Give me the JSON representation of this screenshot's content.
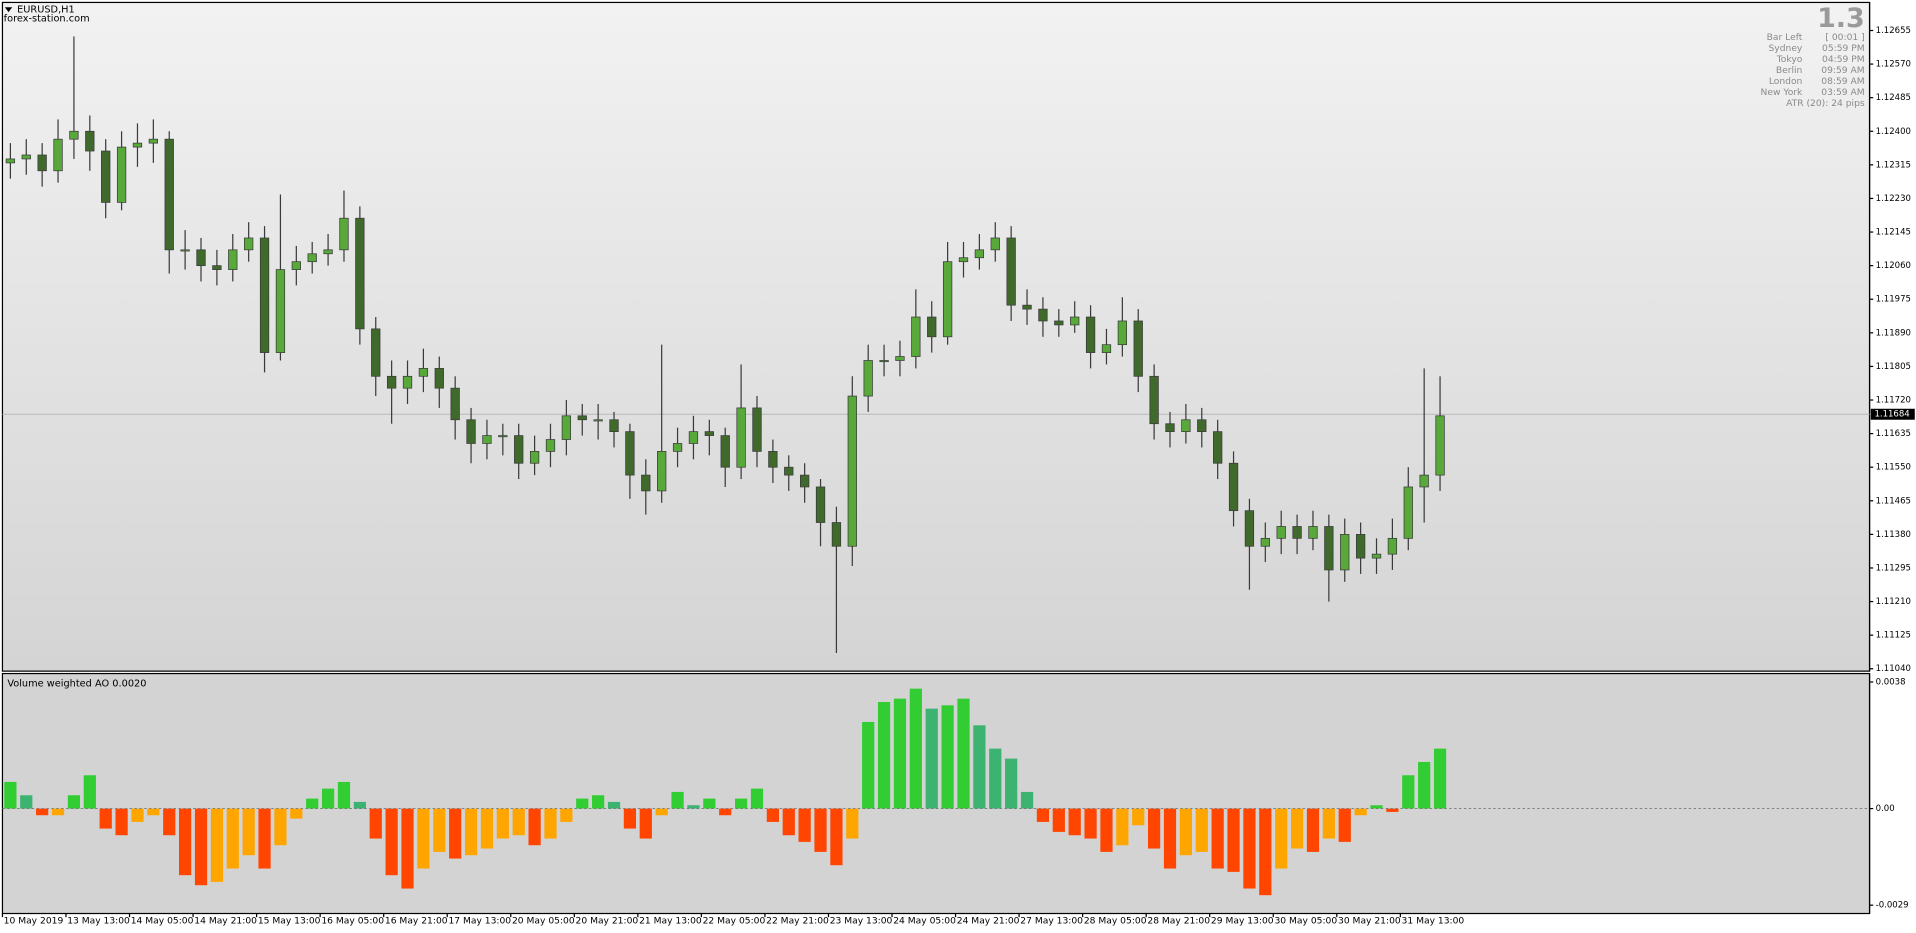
{
  "chart_data": [
    {
      "type": "candlestick",
      "title": "EURUSD,H1",
      "watermark": "forex-station.com",
      "categories": [
        "10 May 2019",
        null,
        null,
        null,
        "13 May 13:00",
        null,
        null,
        null,
        "14 May 05:00",
        null,
        null,
        null,
        "14 May 21:00",
        null,
        null,
        null,
        "15 May 13:00",
        null,
        null,
        null,
        "16 May 05:00",
        null,
        null,
        null,
        "16 May 21:00",
        null,
        null,
        null,
        "17 May 13:00",
        null,
        null,
        null,
        "20 May 05:00",
        null,
        null,
        null,
        "20 May 21:00",
        null,
        null,
        null,
        "21 May 13:00",
        null,
        null,
        null,
        "22 May 05:00",
        null,
        null,
        null,
        "22 May 21:00",
        null,
        null,
        null,
        "23 May 13:00",
        null,
        null,
        null,
        "24 May 05:00",
        null,
        null,
        null,
        "24 May 21:00",
        null,
        null,
        null,
        "27 May 13:00",
        null,
        null,
        null,
        "28 May 05:00",
        null,
        null,
        null,
        "28 May 21:00",
        null,
        null,
        null,
        "29 May 13:00",
        null,
        null,
        null,
        "30 May 05:00",
        null,
        null,
        null,
        "30 May 21:00",
        null,
        null,
        null,
        "31 May 13:00",
        null,
        null
      ],
      "open": [
        1.1232,
        1.1233,
        1.1234,
        1.123,
        1.1238,
        1.124,
        1.1235,
        1.1222,
        1.1236,
        1.1237,
        1.1238,
        1.121,
        1.121,
        1.1206,
        1.1205,
        1.121,
        1.1213,
        1.1184,
        1.1205,
        1.1207,
        1.1209,
        1.121,
        1.1218,
        1.119,
        1.1178,
        1.1175,
        1.1178,
        1.118,
        1.1175,
        1.1167,
        1.1161,
        1.1163,
        1.1163,
        1.1156,
        1.1159,
        1.1162,
        1.1168,
        1.1167,
        1.1167,
        1.1164,
        1.1153,
        1.1149,
        1.1159,
        1.1161,
        1.1164,
        1.1163,
        1.1155,
        1.117,
        1.1159,
        1.1155,
        1.1153,
        1.115,
        1.1141,
        1.1135,
        1.1173,
        1.1182,
        1.1182,
        1.1183,
        1.1193,
        1.1188,
        1.1207,
        1.1208,
        1.121,
        1.1213,
        1.1196,
        1.1195,
        1.1192,
        1.1191,
        1.1193,
        1.1184,
        1.1186,
        1.1192,
        1.1178,
        1.1166,
        1.1164,
        1.1167,
        1.1164,
        1.1156,
        1.1144,
        1.1135,
        1.1137,
        1.114,
        1.1137,
        1.114,
        1.1129,
        1.1138,
        1.1132,
        1.1133,
        1.1137,
        1.115,
        1.1153
      ],
      "high": [
        1.1237,
        1.1238,
        1.1237,
        1.1243,
        1.1264,
        1.1244,
        1.1238,
        1.124,
        1.1242,
        1.1243,
        1.124,
        1.1215,
        1.1213,
        1.121,
        1.1214,
        1.1217,
        1.1216,
        1.1224,
        1.1211,
        1.1212,
        1.1214,
        1.1225,
        1.1221,
        1.1193,
        1.1182,
        1.1182,
        1.1185,
        1.1183,
        1.1178,
        1.117,
        1.1167,
        1.1166,
        1.1166,
        1.1163,
        1.1166,
        1.1172,
        1.1171,
        1.1171,
        1.1169,
        1.1166,
        1.1157,
        1.1186,
        1.1165,
        1.1168,
        1.1167,
        1.1165,
        1.1181,
        1.1173,
        1.1162,
        1.1158,
        1.1156,
        1.1152,
        1.1145,
        1.1178,
        1.1186,
        1.1186,
        1.1187,
        1.12,
        1.1197,
        1.1212,
        1.1212,
        1.1214,
        1.1217,
        1.1216,
        1.12,
        1.1198,
        1.1195,
        1.1197,
        1.1196,
        1.119,
        1.1198,
        1.1195,
        1.1181,
        1.1169,
        1.1171,
        1.117,
        1.1167,
        1.1159,
        1.1147,
        1.1141,
        1.1144,
        1.1143,
        1.1144,
        1.1143,
        1.1142,
        1.1141,
        1.1137,
        1.1142,
        1.1155,
        1.118,
        1.1178
      ],
      "low": [
        1.1228,
        1.1229,
        1.1226,
        1.1227,
        1.1233,
        1.123,
        1.1218,
        1.122,
        1.1231,
        1.1232,
        1.1204,
        1.1205,
        1.1202,
        1.1201,
        1.1202,
        1.1207,
        1.1179,
        1.1182,
        1.1201,
        1.1204,
        1.1206,
        1.1207,
        1.1186,
        1.1173,
        1.1166,
        1.1171,
        1.1174,
        1.117,
        1.1162,
        1.1156,
        1.1157,
        1.1158,
        1.1152,
        1.1153,
        1.1155,
        1.1158,
        1.1163,
        1.1162,
        1.116,
        1.1147,
        1.1143,
        1.1146,
        1.1155,
        1.1157,
        1.1158,
        1.115,
        1.1152,
        1.1155,
        1.1151,
        1.1149,
        1.1146,
        1.1135,
        1.1108,
        1.113,
        1.1169,
        1.1178,
        1.1178,
        1.118,
        1.1184,
        1.1186,
        1.1203,
        1.1205,
        1.1207,
        1.1192,
        1.1191,
        1.1188,
        1.1188,
        1.1189,
        1.118,
        1.1181,
        1.1183,
        1.1174,
        1.1162,
        1.116,
        1.1161,
        1.116,
        1.1152,
        1.114,
        1.1124,
        1.1131,
        1.1133,
        1.1133,
        1.1134,
        1.1121,
        1.1126,
        1.1128,
        1.1128,
        1.1129,
        1.1134,
        1.1141,
        1.1149
      ],
      "close": [
        1.1233,
        1.1234,
        1.123,
        1.1238,
        1.124,
        1.1235,
        1.1222,
        1.1236,
        1.1237,
        1.1238,
        1.121,
        1.121,
        1.1206,
        1.1205,
        1.121,
        1.1213,
        1.1184,
        1.1205,
        1.1207,
        1.1209,
        1.121,
        1.1218,
        1.119,
        1.1178,
        1.1175,
        1.1178,
        1.118,
        1.1175,
        1.1167,
        1.1161,
        1.1163,
        1.1163,
        1.1156,
        1.1159,
        1.1162,
        1.1168,
        1.1167,
        1.1167,
        1.1164,
        1.1153,
        1.1149,
        1.1159,
        1.1161,
        1.1164,
        1.1163,
        1.1155,
        1.117,
        1.1159,
        1.1155,
        1.1153,
        1.115,
        1.1141,
        1.1135,
        1.1173,
        1.1182,
        1.1182,
        1.1183,
        1.1193,
        1.1188,
        1.1207,
        1.1208,
        1.121,
        1.1213,
        1.1196,
        1.1195,
        1.1192,
        1.1191,
        1.1193,
        1.1184,
        1.1186,
        1.1192,
        1.1178,
        1.1166,
        1.1164,
        1.1167,
        1.1164,
        1.1156,
        1.1144,
        1.1135,
        1.1137,
        1.114,
        1.1137,
        1.114,
        1.1129,
        1.1138,
        1.1132,
        1.1133,
        1.1137,
        1.115,
        1.1153,
        1.1168
      ],
      "bull_color": "#58a83a",
      "bear_color": "#3f6a2c",
      "wick_color": "#3a3a3a",
      "ylim": [
        1.11034,
        1.12726
      ],
      "yticks": [
        1.12655,
        {
          "value": 1.1257,
          "label": "1.12570"
        },
        1.12485,
        {
          "value": 1.124,
          "label": "1.12400"
        },
        1.12315,
        {
          "value": 1.1223,
          "label": "1.12230"
        },
        1.12145,
        {
          "value": 1.1206,
          "label": "1.12060"
        },
        1.11975,
        {
          "value": 1.1189,
          "label": "1.11890"
        },
        1.11805,
        {
          "value": 1.1172,
          "label": "1.11720"
        },
        1.11635,
        {
          "value": 1.1155,
          "label": "1.11550"
        },
        1.11465,
        {
          "value": 1.1138,
          "label": "1.11380"
        },
        1.11295,
        {
          "value": 1.1121,
          "label": "1.11210"
        },
        1.11125,
        {
          "value": 1.1104,
          "label": "1.11040"
        }
      ],
      "last_price": 1.11684,
      "grid": false,
      "info": {
        "big": "1.3",
        "rows": [
          [
            "Bar Left",
            "[ 00:01 ]"
          ],
          [
            "Sydney",
            "05:59 PM"
          ],
          [
            "Tokyo",
            "04:59 PM"
          ],
          [
            "Berlin",
            "09:59 AM"
          ],
          [
            "London",
            "08:59 AM"
          ],
          [
            "New York",
            "03:59 AM"
          ],
          [
            "ATR (20): 24 pips"
          ]
        ]
      }
    },
    {
      "type": "bar",
      "title": "Volume weighted AO 0.0020",
      "values": [
        0.0008,
        0.0004,
        -0.0002,
        -0.0002,
        0.0004,
        0.001,
        -0.0006,
        -0.0008,
        -0.0004,
        -0.0002,
        -0.0008,
        -0.002,
        -0.0023,
        -0.0022,
        -0.0018,
        -0.0014,
        -0.0018,
        -0.0011,
        -0.0003,
        0.0003,
        0.0006,
        0.0008,
        0.0002,
        -0.0009,
        -0.002,
        -0.0024,
        -0.0018,
        -0.0013,
        -0.0015,
        -0.0014,
        -0.0012,
        -0.0009,
        -0.0008,
        -0.0011,
        -0.0009,
        -0.0004,
        0.0003,
        0.0004,
        0.0002,
        -0.0006,
        -0.0009,
        -0.0002,
        0.0005,
        0.0001,
        0.0003,
        -0.0002,
        0.0003,
        0.0006,
        -0.0004,
        -0.0008,
        -0.001,
        -0.0013,
        -0.0017,
        -0.0009,
        0.0026,
        0.0032,
        0.0033,
        0.0036,
        0.003,
        0.0031,
        0.0033,
        0.0025,
        0.0018,
        0.0015,
        0.0005,
        -0.0004,
        -0.0007,
        -0.0008,
        -0.0009,
        -0.0013,
        -0.0011,
        -0.0005,
        -0.0012,
        -0.0018,
        -0.0014,
        -0.0013,
        -0.0018,
        -0.0019,
        -0.0024,
        -0.0026,
        -0.0018,
        -0.0012,
        -0.0013,
        -0.0009,
        -0.001,
        -0.0002,
        0.0001,
        -0.0001,
        0.001,
        0.0014,
        0.0018
      ],
      "colors": {
        "up_positive": "#32cd32",
        "down_positive": "#3cb371",
        "up_negative": "#ffa500",
        "down_negative": "#ff4500"
      },
      "ylim": [
        -0.00315,
        0.00398
      ],
      "yticks": [
        0.0038,
        {
          "value": 0,
          "label": "0.00"
        },
        -0.0029
      ],
      "grid": false
    }
  ]
}
